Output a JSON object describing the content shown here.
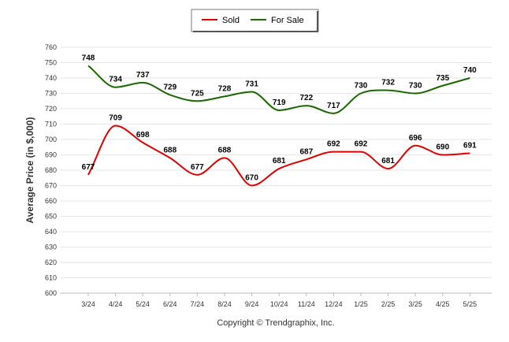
{
  "chart_data": {
    "type": "line",
    "title": "",
    "xlabel": "",
    "ylabel": "Average Price (in $,000)",
    "categories": [
      "3/24",
      "4/24",
      "5/24",
      "6/24",
      "7/24",
      "8/24",
      "9/24",
      "10/24",
      "11/24",
      "12/24",
      "1/25",
      "2/25",
      "3/25",
      "4/25",
      "5/25"
    ],
    "ylim": [
      600,
      760
    ],
    "yticks": [
      600,
      610,
      620,
      630,
      640,
      650,
      660,
      670,
      680,
      690,
      700,
      710,
      720,
      730,
      740,
      750,
      760
    ],
    "grid": true,
    "legend_position": "top-center",
    "series": [
      {
        "name": "Sold",
        "color": "#e00000",
        "values": [
          677,
          709,
          698,
          688,
          677,
          688,
          670,
          681,
          687,
          692,
          692,
          681,
          696,
          690,
          691
        ]
      },
      {
        "name": "For Sale",
        "color": "#1a6600",
        "values": [
          748,
          734,
          737,
          729,
          725,
          728,
          731,
          719,
          722,
          717,
          730,
          732,
          730,
          735,
          740
        ]
      }
    ],
    "footer": "Copyright © Trendgraphix, Inc."
  }
}
